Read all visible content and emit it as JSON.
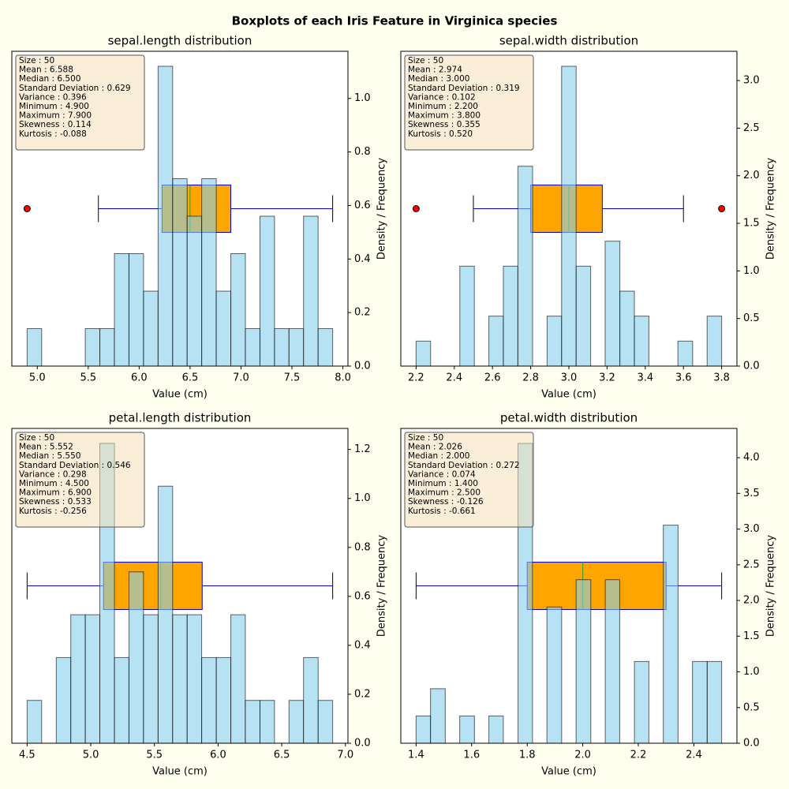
{
  "title": "Boxplots of each Iris Feature in Virginica species",
  "chart_data": [
    {
      "type": "histogram",
      "title": "sepal.length distribution",
      "xlabel": "Value (cm)",
      "ylabel": "Density / Frequency",
      "stats": [
        "Size : 50",
        "Mean : 6.588",
        "Median : 6.500",
        "Standard Deviation : 0.629",
        "Variance : 0.396",
        "Minimum : 4.900",
        "Maximum : 7.900",
        "Skewness : 0.114",
        "Kurtosis  : -0.088"
      ],
      "color": "#87ceeb",
      "bins": [
        4.9,
        5.043,
        5.186,
        5.329,
        5.471,
        5.614,
        5.757,
        5.9,
        6.043,
        6.186,
        6.329,
        6.471,
        6.614,
        6.757,
        6.9,
        7.043,
        7.186,
        7.329,
        7.471,
        7.614,
        7.757,
        7.9
      ],
      "values": [
        0.14,
        0,
        0,
        0,
        0.14,
        0.14,
        0.42,
        0.42,
        0.28,
        1.12,
        0.7,
        0.56,
        0.7,
        0.28,
        0.42,
        0.14,
        0.56,
        0.14,
        0.14,
        0.56,
        0.14
      ],
      "box": {
        "q1": 6.225,
        "median": 6.5,
        "q3": 6.9,
        "whislo": 5.6,
        "whishi": 7.9,
        "fliers": [
          4.9
        ],
        "color": "#ffa500"
      },
      "xlim": [
        4.75,
        8.05
      ],
      "xticks": [
        {
          "value": 5,
          "label": "5.0"
        },
        5.5,
        {
          "value": 6,
          "label": "6.0"
        },
        6.5,
        {
          "value": 7,
          "label": "7.0"
        },
        7.5,
        {
          "value": 8,
          "label": "8.0"
        }
      ],
      "ylim": [
        0,
        1.176
      ],
      "yticks": [
        {
          "value": 0,
          "label": "0.0"
        },
        0.2,
        0.4,
        0.6,
        0.8,
        {
          "value": 1,
          "label": "1.0"
        }
      ]
    },
    {
      "type": "histogram",
      "title": "sepal.width distribution",
      "xlabel": "Value (cm)",
      "ylabel": "Density / Frequency",
      "stats": [
        "Size : 50",
        "Mean : 2.974",
        "Median : 3.000",
        "Standard Deviation : 0.319",
        "Variance : 0.102",
        "Minimum : 2.200",
        "Maximum : 3.800",
        "Skewness : 0.355",
        "Kurtosis  : 0.520"
      ],
      "color": "#87ceeb",
      "bins": [
        2.2,
        2.276,
        2.352,
        2.429,
        2.505,
        2.581,
        2.657,
        2.733,
        2.81,
        2.886,
        2.962,
        3.038,
        3.114,
        3.19,
        3.267,
        3.343,
        3.419,
        3.495,
        3.571,
        3.648,
        3.724,
        3.8
      ],
      "values": [
        0.2625,
        0,
        0,
        1.05,
        0,
        0.525,
        1.05,
        2.1,
        0,
        0.525,
        3.15,
        1.05,
        0,
        1.3125,
        0.7875,
        0.525,
        0,
        0,
        0.2625,
        0,
        0.525
      ],
      "box": {
        "q1": 2.8,
        "median": 3.0,
        "q3": 3.175,
        "whislo": 2.5,
        "whishi": 3.6,
        "fliers": [
          2.2,
          3.8
        ],
        "color": "#ffa500"
      },
      "xlim": [
        2.12,
        3.88
      ],
      "xticks": [
        2.2,
        2.4,
        2.6,
        2.8,
        {
          "value": 3,
          "label": "3.0"
        },
        3.2,
        3.4,
        3.6,
        3.8
      ],
      "ylim": [
        0,
        3.3075
      ],
      "yticks": [
        {
          "value": 0,
          "label": "0.0"
        },
        0.5,
        {
          "value": 1,
          "label": "1.0"
        },
        1.5,
        {
          "value": 2,
          "label": "2.0"
        },
        2.5,
        {
          "value": 3,
          "label": "3.0"
        }
      ]
    },
    {
      "type": "histogram",
      "title": "petal.length distribution",
      "xlabel": "Value (cm)",
      "ylabel": "Density / Frequency",
      "stats": [
        "Size : 50",
        "Mean : 5.552",
        "Median : 5.550",
        "Standard Deviation : 0.546",
        "Variance : 0.298",
        "Minimum : 4.500",
        "Maximum : 6.900",
        "Skewness : 0.533",
        "Kurtosis  : -0.256"
      ],
      "color": "#87ceeb",
      "bins": [
        4.5,
        4.614,
        4.729,
        4.843,
        4.957,
        5.071,
        5.186,
        5.3,
        5.414,
        5.529,
        5.643,
        5.757,
        5.871,
        5.986,
        6.1,
        6.214,
        6.329,
        6.443,
        6.557,
        6.671,
        6.786,
        6.9
      ],
      "values": [
        0.175,
        0,
        0.35,
        0.525,
        0.525,
        1.225,
        0.35,
        0.7,
        0.525,
        1.05,
        0.525,
        0.525,
        0.35,
        0.35,
        0.525,
        0.175,
        0.175,
        0,
        0.175,
        0.35,
        0.175
      ],
      "box": {
        "q1": 5.1,
        "median": 5.55,
        "q3": 5.875,
        "whislo": 4.5,
        "whishi": 6.9,
        "fliers": [],
        "color": "#ffa500"
      },
      "xlim": [
        4.38,
        7.02
      ],
      "xticks": [
        4.5,
        {
          "value": 5,
          "label": "5.0"
        },
        5.5,
        {
          "value": 6,
          "label": "6.0"
        },
        6.5,
        {
          "value": 7,
          "label": "7.0"
        }
      ],
      "ylim": [
        0,
        1.286
      ],
      "yticks": [
        {
          "value": 0,
          "label": "0.0"
        },
        0.2,
        0.4,
        0.6,
        0.8,
        {
          "value": 1,
          "label": "1.0"
        },
        1.2
      ]
    },
    {
      "type": "histogram",
      "title": "petal.width distribution",
      "xlabel": "Value (cm)",
      "ylabel": "Density / Frequency",
      "stats": [
        "Size : 50",
        "Mean : 2.026",
        "Median : 2.000",
        "Standard Deviation : 0.272",
        "Variance : 0.074",
        "Minimum : 1.400",
        "Maximum : 2.500",
        "Skewness : -0.126",
        "Kurtosis  : -0.661"
      ],
      "color": "#87ceeb",
      "bins": [
        1.4,
        1.452,
        1.505,
        1.557,
        1.61,
        1.662,
        1.714,
        1.767,
        1.819,
        1.871,
        1.924,
        1.976,
        2.029,
        2.081,
        2.133,
        2.186,
        2.238,
        2.29,
        2.343,
        2.395,
        2.448,
        2.5
      ],
      "values": [
        0.382,
        0.764,
        0,
        0.382,
        0,
        0.382,
        0,
        4.2,
        0,
        1.909,
        0,
        2.291,
        0,
        2.291,
        0,
        1.145,
        0,
        3.055,
        0,
        1.145,
        1.145
      ],
      "box": {
        "q1": 1.8,
        "median": 2.0,
        "q3": 2.3,
        "whislo": 1.4,
        "whishi": 2.5,
        "fliers": [],
        "color": "#ffa500"
      },
      "xlim": [
        1.345,
        2.555
      ],
      "xticks": [
        1.4,
        1.6,
        1.8,
        {
          "value": 2,
          "label": "2.0"
        },
        2.2,
        2.4
      ],
      "ylim": [
        0,
        4.41
      ],
      "yticks": [
        {
          "value": 0,
          "label": "0.0"
        },
        0.5,
        {
          "value": 1,
          "label": "1.0"
        },
        1.5,
        {
          "value": 2,
          "label": "2.0"
        },
        2.5,
        {
          "value": 3,
          "label": "3.0"
        },
        3.5,
        {
          "value": 4,
          "label": "4.0"
        }
      ]
    }
  ]
}
